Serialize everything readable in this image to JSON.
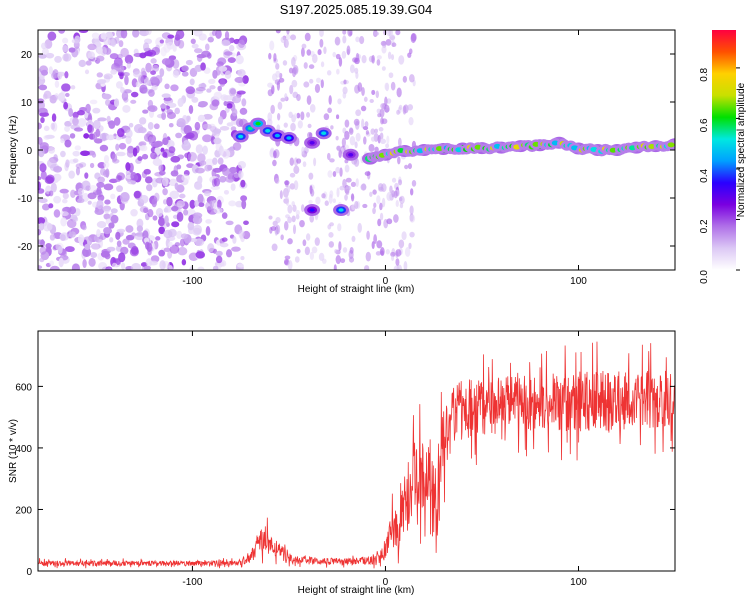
{
  "title": "S197.2025.085.19.39.G04",
  "chart_data": [
    {
      "type": "heatmap",
      "xlabel": "Height of straight line (km)",
      "ylabel": "Frequency (Hz)",
      "xlim": [
        -180,
        150
      ],
      "ylim": [
        -25,
        25
      ],
      "x_ticks": [
        -100,
        0,
        100
      ],
      "y_ticks": [
        -20,
        -10,
        0,
        10,
        20
      ],
      "colorbar": {
        "label": "Normalized spectral amplitude",
        "range": [
          0,
          0.95
        ],
        "ticks": [
          0.0,
          0.2,
          0.4,
          0.6,
          0.8
        ],
        "colormap": [
          "#ffffff",
          "#dcc8f5",
          "#b070e8",
          "#7a00e0",
          "#2a00ff",
          "#00a0ff",
          "#00e8e0",
          "#00e000",
          "#c8e000",
          "#ffd000",
          "#ff5000",
          "#ff0040"
        ]
      },
      "noise_region": {
        "x": [
          -180,
          -72
        ],
        "y": [
          -25,
          25
        ],
        "typical_amplitude": 0.12
      },
      "track": [
        {
          "x": -75,
          "y": 2.8,
          "amp": 0.5
        },
        {
          "x": -70,
          "y": 4.5,
          "amp": 0.55
        },
        {
          "x": -66,
          "y": 5.5,
          "amp": 0.6
        },
        {
          "x": -61,
          "y": 4.0,
          "amp": 0.5
        },
        {
          "x": -56,
          "y": 3.0,
          "amp": 0.45
        },
        {
          "x": -50,
          "y": 2.5,
          "amp": 0.45
        },
        {
          "x": -38,
          "y": 1.5,
          "amp": 0.3
        },
        {
          "x": -32,
          "y": 3.5,
          "amp": 0.5
        },
        {
          "x": -38,
          "y": -12.5,
          "amp": 0.35
        },
        {
          "x": -23,
          "y": -12.5,
          "amp": 0.5
        },
        {
          "x": -18,
          "y": -1.0,
          "amp": 0.3
        },
        {
          "x": -8,
          "y": -1.8,
          "amp": 0.75
        },
        {
          "x": 0,
          "y": -1.0,
          "amp": 0.8
        },
        {
          "x": 10,
          "y": -0.2,
          "amp": 0.8
        },
        {
          "x": 20,
          "y": 0.0,
          "amp": 0.8
        },
        {
          "x": 30,
          "y": 0.2,
          "amp": 0.8
        },
        {
          "x": 40,
          "y": 0.3,
          "amp": 0.8
        },
        {
          "x": 50,
          "y": 0.4,
          "amp": 0.8
        },
        {
          "x": 60,
          "y": 0.5,
          "amp": 0.8
        },
        {
          "x": 70,
          "y": 0.8,
          "amp": 0.8
        },
        {
          "x": 80,
          "y": 1.0,
          "amp": 0.82
        },
        {
          "x": 90,
          "y": 1.5,
          "amp": 0.85
        },
        {
          "x": 100,
          "y": 0.3,
          "amp": 0.8
        },
        {
          "x": 110,
          "y": 0.0,
          "amp": 0.8
        },
        {
          "x": 120,
          "y": 0.0,
          "amp": 0.8
        },
        {
          "x": 130,
          "y": 0.5,
          "amp": 0.8
        },
        {
          "x": 140,
          "y": 0.8,
          "amp": 0.8
        },
        {
          "x": 150,
          "y": 1.2,
          "amp": 0.8
        }
      ]
    },
    {
      "type": "line",
      "xlabel": "Height of straight line (km)",
      "ylabel": "SNR (10 * v/v)",
      "xlim": [
        -180,
        150
      ],
      "ylim": [
        0,
        780
      ],
      "x_ticks": [
        -100,
        0,
        100
      ],
      "y_ticks": [
        0,
        200,
        400,
        600
      ],
      "color": "#ee3333",
      "profile": [
        {
          "x": -180,
          "mean": 25,
          "spread": 12
        },
        {
          "x": -75,
          "mean": 25,
          "spread": 12
        },
        {
          "x": -70,
          "mean": 45,
          "spread": 30
        },
        {
          "x": -63,
          "mean": 110,
          "spread": 60
        },
        {
          "x": -58,
          "mean": 80,
          "spread": 50
        },
        {
          "x": -48,
          "mean": 35,
          "spread": 20
        },
        {
          "x": -20,
          "mean": 30,
          "spread": 15
        },
        {
          "x": -5,
          "mean": 35,
          "spread": 20
        },
        {
          "x": 0,
          "mean": 70,
          "spread": 50
        },
        {
          "x": 5,
          "mean": 150,
          "spread": 110
        },
        {
          "x": 10,
          "mean": 220,
          "spread": 160
        },
        {
          "x": 15,
          "mean": 300,
          "spread": 180
        },
        {
          "x": 22,
          "mean": 330,
          "spread": 160
        },
        {
          "x": 27,
          "mean": 200,
          "spread": 150
        },
        {
          "x": 30,
          "mean": 450,
          "spread": 200
        },
        {
          "x": 35,
          "mean": 520,
          "spread": 140
        },
        {
          "x": 60,
          "mean": 540,
          "spread": 130
        },
        {
          "x": 100,
          "mean": 550,
          "spread": 140
        },
        {
          "x": 150,
          "mean": 560,
          "spread": 140
        }
      ]
    }
  ]
}
